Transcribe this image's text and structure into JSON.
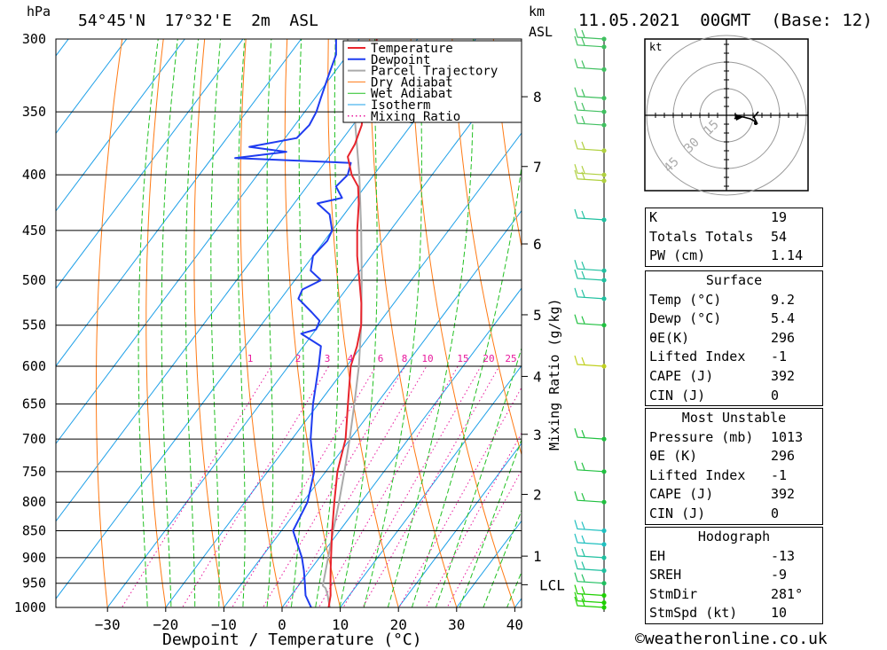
{
  "header": {
    "hpa_label": "hPa",
    "location": "54°45'N  17°32'E  2m  ASL",
    "km_label": "km",
    "asl_label": "ASL",
    "datetime": "11.05.2021  00GMT  (Base: 12)"
  },
  "chart_data": {
    "type": "line",
    "diagram": "skew-T log-p",
    "xlabel": "Dewpoint / Temperature (°C)",
    "ylabel": "hPa",
    "xlim": [
      -40,
      40
    ],
    "ylim": [
      1000,
      300
    ],
    "y_scale": "log",
    "pressure_ticks": [
      300,
      350,
      400,
      450,
      500,
      550,
      600,
      650,
      700,
      750,
      800,
      850,
      900,
      950,
      1000
    ],
    "temp_ticks": [
      -30,
      -20,
      -10,
      0,
      10,
      20,
      30,
      40
    ],
    "km_ticks": [
      {
        "label": "8",
        "p": 339
      },
      {
        "label": "7",
        "p": 393
      },
      {
        "label": "6",
        "p": 463
      },
      {
        "label": "5",
        "p": 538
      },
      {
        "label": "4",
        "p": 613
      },
      {
        "label": "3",
        "p": 693
      },
      {
        "label": "2",
        "p": 787
      },
      {
        "label": "1",
        "p": 897
      },
      {
        "label": "LCL",
        "p": 953
      }
    ],
    "mixing_ratio_label": "Mixing Ratio (g/kg)",
    "mixing_ratio_ticks": [
      "1",
      "2",
      "3",
      "4",
      "6",
      "8",
      "10",
      "15",
      "20",
      "25"
    ],
    "legend": [
      "Temperature",
      "Dewpoint",
      "Parcel Trajectory",
      "Dry Adiabat",
      "Wet Adiabat",
      "Isotherm",
      "Mixing Ratio"
    ],
    "legend_position": "top-right",
    "colors": {
      "temperature": "#e8242c",
      "dewpoint": "#1f3cf0",
      "parcel": "#aaaaaa",
      "dry_adiabat": "#ff7a14",
      "wet_adiabat": "#22c022",
      "isotherm": "#1ea0e8",
      "mixing_ratio": "#e8189c"
    },
    "series": [
      {
        "name": "Temperature",
        "points": [
          [
            1013,
            9.2
          ],
          [
            1000,
            8.0
          ],
          [
            975,
            6.8
          ],
          [
            950,
            5.2
          ],
          [
            925,
            3.6
          ],
          [
            900,
            2.0
          ],
          [
            850,
            -1.3
          ],
          [
            800,
            -4.6
          ],
          [
            750,
            -8.0
          ],
          [
            700,
            -10.8
          ],
          [
            650,
            -14.9
          ],
          [
            600,
            -19.3
          ],
          [
            575,
            -20.8
          ],
          [
            550,
            -22.8
          ],
          [
            525,
            -25.6
          ],
          [
            500,
            -28.9
          ],
          [
            475,
            -32.4
          ],
          [
            450,
            -35.7
          ],
          [
            425,
            -38.9
          ],
          [
            410,
            -41.2
          ],
          [
            400,
            -43.8
          ],
          [
            385,
            -46.8
          ],
          [
            375,
            -47.2
          ],
          [
            360,
            -48.5
          ],
          [
            350,
            -50.0
          ],
          [
            340,
            -51.5
          ],
          [
            325,
            -53.5
          ],
          [
            310,
            -55.5
          ],
          [
            300,
            -57.0
          ]
        ]
      },
      {
        "name": "Dewpoint",
        "points": [
          [
            1013,
            5.4
          ],
          [
            1000,
            5.0
          ],
          [
            975,
            2.5
          ],
          [
            950,
            0.8
          ],
          [
            925,
            -1.0
          ],
          [
            900,
            -3.0
          ],
          [
            850,
            -8.0
          ],
          [
            800,
            -9.2
          ],
          [
            750,
            -12.0
          ],
          [
            700,
            -16.8
          ],
          [
            650,
            -20.9
          ],
          [
            600,
            -24.8
          ],
          [
            575,
            -27.0
          ],
          [
            560,
            -32.0
          ],
          [
            555,
            -30.0
          ],
          [
            545,
            -30.5
          ],
          [
            535,
            -33.0
          ],
          [
            520,
            -37.0
          ],
          [
            510,
            -37.5
          ],
          [
            500,
            -35.5
          ],
          [
            490,
            -38.5
          ],
          [
            475,
            -40.0
          ],
          [
            460,
            -39.5
          ],
          [
            450,
            -40.0
          ],
          [
            435,
            -42.5
          ],
          [
            425,
            -46.0
          ],
          [
            420,
            -42.5
          ],
          [
            410,
            -45.0
          ],
          [
            400,
            -44.5
          ],
          [
            390,
            -45.5
          ],
          [
            386,
            -66.0
          ],
          [
            381,
            -58.0
          ],
          [
            377,
            -65.0
          ],
          [
            370,
            -58.0
          ],
          [
            360,
            -57.5
          ],
          [
            350,
            -58.0
          ],
          [
            340,
            -59.0
          ],
          [
            325,
            -60.5
          ],
          [
            310,
            -62.0
          ],
          [
            300,
            -64.0
          ]
        ]
      },
      {
        "name": "Parcel Trajectory",
        "points": [
          [
            1013,
            9.2
          ],
          [
            1000,
            8.2
          ],
          [
            975,
            6.3
          ],
          [
            960,
            5.0
          ],
          [
            955,
            4.2
          ],
          [
            900,
            1.5
          ],
          [
            850,
            -1.1
          ],
          [
            800,
            -3.8
          ],
          [
            750,
            -6.8
          ],
          [
            700,
            -10.1
          ],
          [
            650,
            -13.8
          ],
          [
            600,
            -17.9
          ],
          [
            550,
            -22.8
          ],
          [
            500,
            -28.5
          ],
          [
            450,
            -35.0
          ],
          [
            400,
            -42.5
          ],
          [
            350,
            -51.5
          ],
          [
            300,
            -62.0
          ]
        ]
      }
    ]
  },
  "hodograph": {
    "unit_label": "kt",
    "ring_labels": [
      "15",
      "30",
      "45"
    ]
  },
  "indices": {
    "k_label": "K",
    "k_value": "19",
    "tt_label": "Totals Totals",
    "tt_value": "54",
    "pw_label": "PW (cm)",
    "pw_value": "1.14"
  },
  "surface": {
    "title": "Surface",
    "temp_label": "Temp (°C)",
    "temp_value": "9.2",
    "dewp_label": "Dewp (°C)",
    "dewp_value": "5.4",
    "thetae_label": "θE(K)",
    "thetae_value": "296",
    "li_label": "Lifted Index",
    "li_value": "-1",
    "cape_label": "CAPE (J)",
    "cape_value": "392",
    "cin_label": "CIN (J)",
    "cin_value": "0"
  },
  "most_unstable": {
    "title": "Most Unstable",
    "pressure_label": "Pressure (mb)",
    "pressure_value": "1013",
    "thetae_label": "θE (K)",
    "thetae_value": "296",
    "li_label": "Lifted Index",
    "li_value": "-1",
    "cape_label": "CAPE (J)",
    "cape_value": "392",
    "cin_label": "CIN (J)",
    "cin_value": "0"
  },
  "hodograph_stats": {
    "title": "Hodograph",
    "eh_label": "EH",
    "eh_value": "-13",
    "sreh_label": "SREH",
    "sreh_value": "-9",
    "stmdir_label": "StmDir",
    "stmdir_value": "281°",
    "stmspd_label": "StmSpd (kt)",
    "stmspd_value": "10"
  },
  "footer": {
    "copyright": "©weatheronline.co.uk"
  }
}
